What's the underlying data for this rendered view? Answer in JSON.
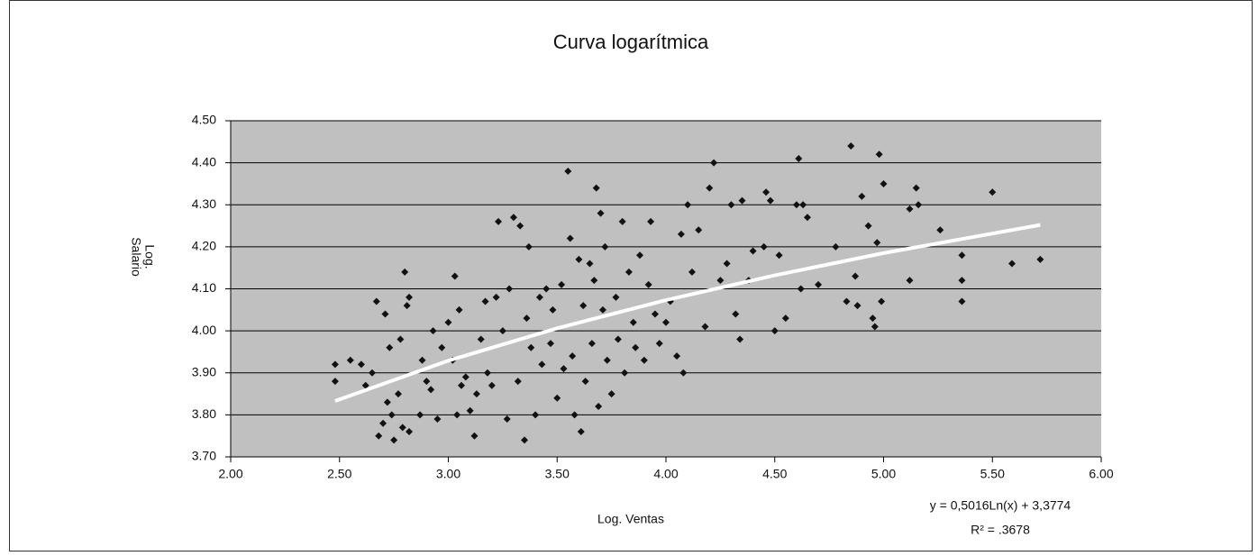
{
  "chart_data": {
    "type": "scatter",
    "title": "Curva logarítmica",
    "xlabel": "Log. Ventas",
    "ylabel": [
      "Log.",
      "Salario"
    ],
    "equation": "y = 0,5016Ln(x) + 3,3774",
    "r_squared": "R² = .3678",
    "xlim": [
      2,
      6
    ],
    "ylim": [
      3.7,
      4.5
    ],
    "xticks": [
      {
        "value": 2,
        "label": "2.00"
      },
      {
        "value": 2.5,
        "label": "2.50"
      },
      {
        "value": 3,
        "label": "3.00"
      },
      {
        "value": 3.5,
        "label": "3.50"
      },
      {
        "value": 4,
        "label": "4.00"
      },
      {
        "value": 4.5,
        "label": "4.50"
      },
      {
        "value": 5,
        "label": "5.00"
      },
      {
        "value": 5.5,
        "label": "5.50"
      },
      {
        "value": 6,
        "label": "6.00"
      }
    ],
    "yticks": [
      {
        "value": 3.7,
        "label": "3.70"
      },
      {
        "value": 3.8,
        "label": "3.80"
      },
      {
        "value": 3.9,
        "label": "3.90"
      },
      {
        "value": 4,
        "label": "4.00"
      },
      {
        "value": 4.1,
        "label": "4.10"
      },
      {
        "value": 4.2,
        "label": "4.20"
      },
      {
        "value": 4.3,
        "label": "4.30"
      },
      {
        "value": 4.4,
        "label": "4.40"
      },
      {
        "value": 4.5,
        "label": "4.50"
      }
    ],
    "grid": true,
    "background": "#c0c0c0",
    "series": [
      {
        "color": "#111111",
        "marker": "diamond",
        "x": [
          2.48,
          2.48,
          2.55,
          2.6,
          2.62,
          2.65,
          2.67,
          2.68,
          2.7,
          2.71,
          2.72,
          2.73,
          2.74,
          2.75,
          2.77,
          2.78,
          2.79,
          2.8,
          2.81,
          2.82,
          2.82,
          2.87,
          2.88,
          2.9,
          2.92,
          2.93,
          2.95,
          2.97,
          3.0,
          3.02,
          3.03,
          3.04,
          3.05,
          3.06,
          3.08,
          3.1,
          3.12,
          3.13,
          3.15,
          3.17,
          3.18,
          3.2,
          3.22,
          3.23,
          3.25,
          3.27,
          3.28,
          3.3,
          3.32,
          3.33,
          3.35,
          3.36,
          3.37,
          3.38,
          3.4,
          3.42,
          3.43,
          3.45,
          3.47,
          3.48,
          3.5,
          3.52,
          3.53,
          3.55,
          3.56,
          3.57,
          3.58,
          3.6,
          3.61,
          3.62,
          3.63,
          3.65,
          3.66,
          3.67,
          3.68,
          3.69,
          3.7,
          3.71,
          3.72,
          3.73,
          3.75,
          3.77,
          3.78,
          3.8,
          3.81,
          3.83,
          3.85,
          3.86,
          3.88,
          3.9,
          3.92,
          3.93,
          3.95,
          3.97,
          4.0,
          4.02,
          4.05,
          4.07,
          4.08,
          4.1,
          4.12,
          4.15,
          4.18,
          4.2,
          4.22,
          4.25,
          4.28,
          4.3,
          4.32,
          4.34,
          4.35,
          4.38,
          4.4,
          4.45,
          4.46,
          4.48,
          4.5,
          4.52,
          4.55,
          4.6,
          4.61,
          4.62,
          4.63,
          4.65,
          4.7,
          4.78,
          4.83,
          4.85,
          4.87,
          4.88,
          4.9,
          4.93,
          4.95,
          4.96,
          4.97,
          4.98,
          5.0,
          4.99,
          5.12,
          5.12,
          5.15,
          5.16,
          5.26,
          5.36,
          5.36,
          5.36,
          5.5,
          5.59,
          5.72
        ],
        "values": [
          3.92,
          3.88,
          3.93,
          3.92,
          3.87,
          3.9,
          4.07,
          3.75,
          3.78,
          4.04,
          3.83,
          3.96,
          3.8,
          3.74,
          3.85,
          3.98,
          3.77,
          4.14,
          4.06,
          4.08,
          3.76,
          3.8,
          3.93,
          3.88,
          3.86,
          4.0,
          3.79,
          3.96,
          4.02,
          3.93,
          4.13,
          3.8,
          4.05,
          3.87,
          3.89,
          3.81,
          3.75,
          3.85,
          3.98,
          4.07,
          3.9,
          3.87,
          4.08,
          4.26,
          4.0,
          3.79,
          4.1,
          4.27,
          3.88,
          4.25,
          3.74,
          4.03,
          4.2,
          3.96,
          3.8,
          4.08,
          3.92,
          4.1,
          3.97,
          4.05,
          3.84,
          4.11,
          3.91,
          4.38,
          4.22,
          3.94,
          3.8,
          4.17,
          3.76,
          4.06,
          3.88,
          4.16,
          3.97,
          4.12,
          4.34,
          3.82,
          4.28,
          4.05,
          4.2,
          3.93,
          3.85,
          4.08,
          3.98,
          4.26,
          3.9,
          4.14,
          4.02,
          3.96,
          4.18,
          3.93,
          4.11,
          4.26,
          4.04,
          3.97,
          4.02,
          4.07,
          3.94,
          4.23,
          3.9,
          4.3,
          4.14,
          4.24,
          4.01,
          4.34,
          4.4,
          4.12,
          4.16,
          4.3,
          4.04,
          3.98,
          4.31,
          4.12,
          4.19,
          4.2,
          4.33,
          4.31,
          4.0,
          4.18,
          4.03,
          4.3,
          4.41,
          4.1,
          4.3,
          4.27,
          4.11,
          4.2,
          4.07,
          4.44,
          4.13,
          4.06,
          4.32,
          4.25,
          4.03,
          4.01,
          4.21,
          4.42,
          4.35,
          4.07,
          4.29,
          4.12,
          4.34,
          4.3,
          4.24,
          4.18,
          4.12,
          4.07,
          4.33,
          4.16,
          4.17
        ]
      },
      {
        "color": "#ffffff",
        "marker": "line",
        "x": [
          2.48,
          3,
          3.5,
          4,
          4.5,
          5,
          5.72
        ],
        "values": [
          3.833,
          3.929,
          4.006,
          4.073,
          4.132,
          4.185,
          4.252
        ]
      }
    ]
  }
}
